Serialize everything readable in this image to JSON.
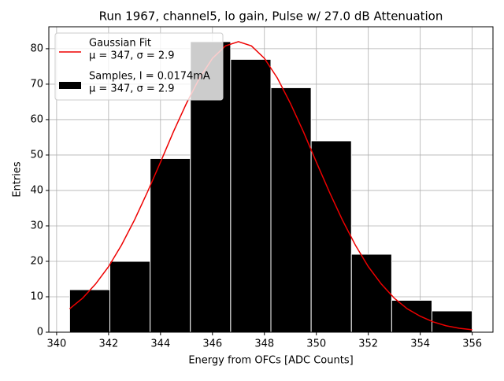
{
  "chart_data": {
    "type": "histogram",
    "title": "Run 1967, channel5, lo gain, Pulse w/ 27.0 dB Attenuation",
    "xlabel": "Energy from OFCs [ADC Counts]",
    "ylabel": "Entries",
    "xlim": [
      339.7,
      356.8
    ],
    "ylim": [
      0,
      86.2
    ],
    "xticks": [
      340,
      342,
      344,
      346,
      348,
      350,
      352,
      354,
      356
    ],
    "yticks": [
      0,
      10,
      20,
      30,
      40,
      50,
      60,
      70,
      80
    ],
    "grid": true,
    "legend": "upper left",
    "series": [
      {
        "name": [
          "Gaussian Fit",
          "μ = 347, σ = 2.9"
        ],
        "type": "line",
        "color": "#ee0000",
        "x": [
          340.5,
          341,
          341.5,
          342,
          342.5,
          343,
          343.5,
          344,
          344.5,
          345,
          345.5,
          346,
          346.5,
          347,
          347.5,
          348,
          348.5,
          349,
          349.5,
          350,
          350.5,
          351,
          351.5,
          352,
          352.5,
          353,
          353.5,
          354,
          354.5,
          355,
          355.5,
          356
        ],
        "values": [
          6.6,
          9.6,
          13.6,
          18.5,
          24.6,
          31.7,
          39.6,
          48.0,
          56.6,
          64.6,
          71.7,
          77.3,
          80.8,
          82,
          80.8,
          77.3,
          71.7,
          64.6,
          56.6,
          48.0,
          39.6,
          31.7,
          24.6,
          18.5,
          13.6,
          9.6,
          6.6,
          4.5,
          2.9,
          1.8,
          1.1,
          0.7
        ]
      },
      {
        "name": [
          "Samples, I = 0.0174mA",
          "μ = 347, σ = 2.9"
        ],
        "type": "histogram",
        "color": "#000000",
        "bins": [
          340.5,
          342.05,
          343.6,
          345.15,
          346.7,
          348.25,
          349.8,
          351.35,
          352.9,
          354.45,
          356.0
        ],
        "values": [
          12,
          20,
          49,
          82,
          77,
          69,
          54,
          22,
          9,
          6
        ]
      }
    ]
  }
}
